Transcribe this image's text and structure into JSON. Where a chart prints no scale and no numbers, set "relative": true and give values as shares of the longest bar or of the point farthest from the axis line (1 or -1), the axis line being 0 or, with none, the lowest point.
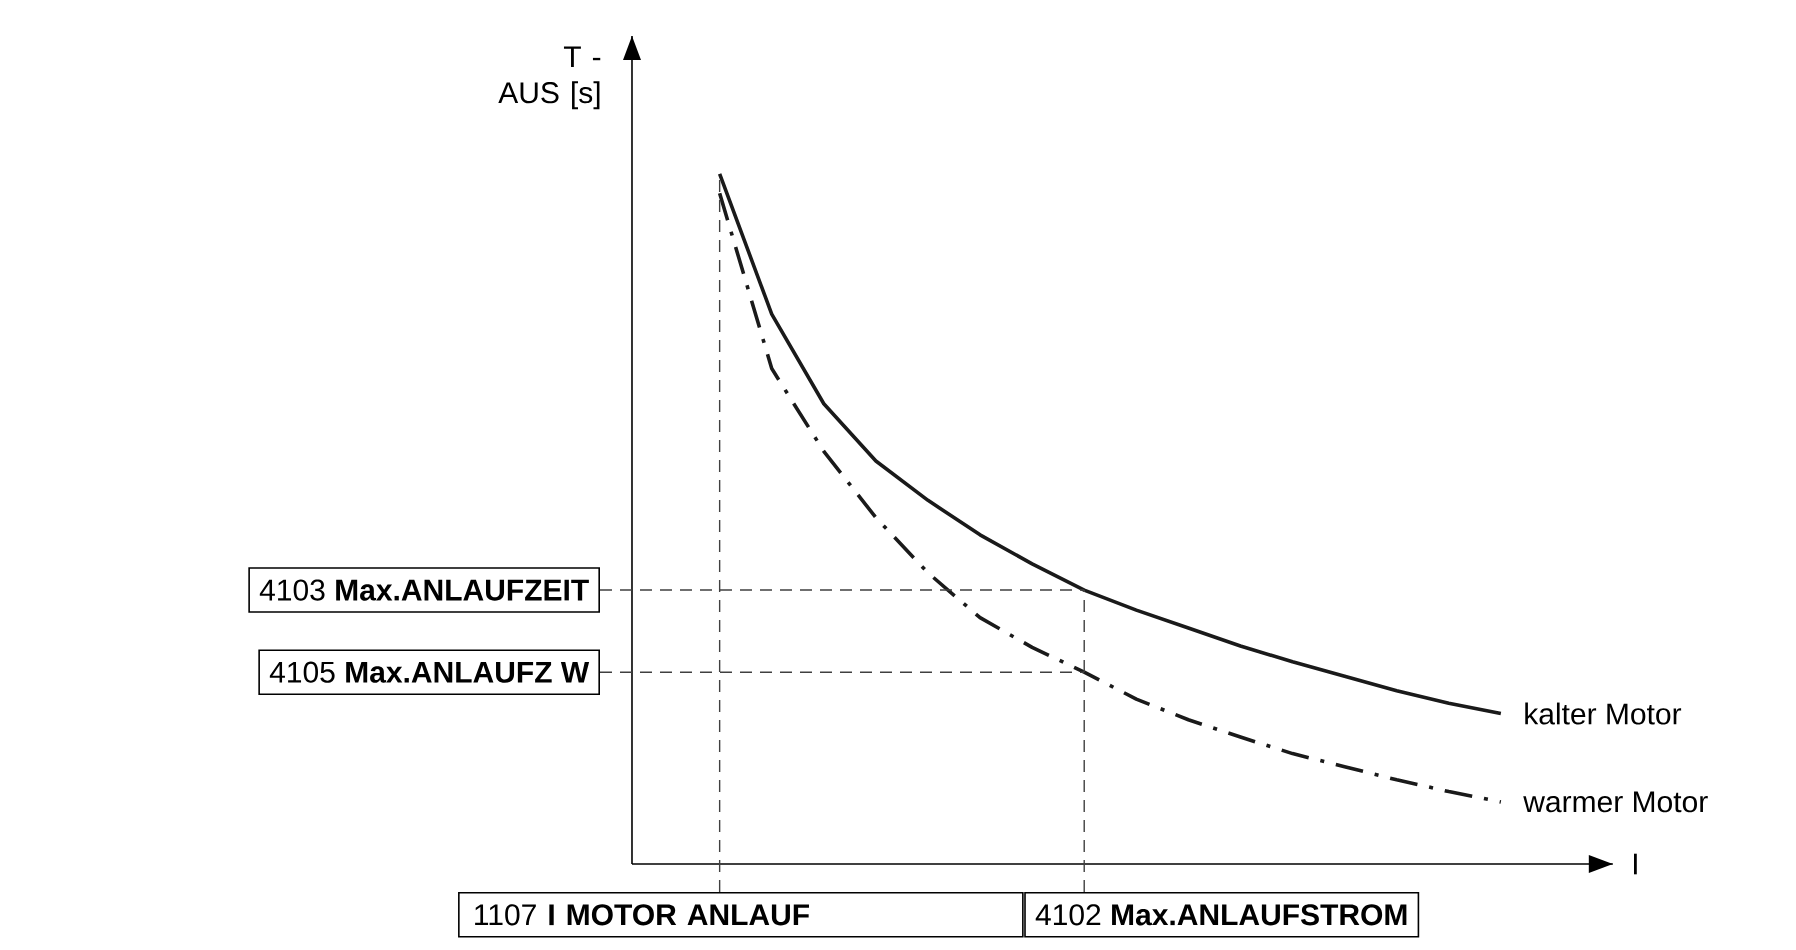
{
  "chart_data": {
    "type": "line",
    "relative": true,
    "xlabel": "I",
    "ylabel": "T - AUS [s]",
    "legend": false,
    "categories": [
      null,
      null,
      null,
      null,
      null,
      null,
      null,
      null,
      null,
      null,
      null,
      null,
      null,
      null,
      null,
      null
    ],
    "series": [
      {
        "name": "kalter Motor",
        "color": "#1a1a1a",
        "line_style": "solid",
        "values": [
          1.0,
          0.797,
          0.667,
          0.584,
          0.527,
          0.477,
          0.435,
          0.397,
          0.368,
          0.342,
          0.316,
          0.293,
          0.272,
          0.251,
          0.233,
          0.218
        ]
      },
      {
        "name": "warmer Motor",
        "color": "#1a1a1a",
        "line_style": "dashdot",
        "values": [
          0.972,
          0.718,
          0.598,
          0.502,
          0.422,
          0.357,
          0.314,
          0.278,
          0.239,
          0.209,
          0.184,
          0.16,
          0.141,
          0.122,
          0.105,
          0.09
        ]
      }
    ],
    "ref_lines": [
      {
        "axis": "y",
        "value": 0.397,
        "label": "4103 **Max.ANLAUFZEIT**",
        "line_style": "dashed"
      },
      {
        "axis": "y",
        "value": 0.278,
        "label": "4105 **Max.ANLAUFZ W**",
        "line_style": "dashed"
      }
    ],
    "annotations": [
      "1107 **I MOTOR ANLAUF**",
      "4102 **Max.ANLAUFSTROM**"
    ]
  }
}
